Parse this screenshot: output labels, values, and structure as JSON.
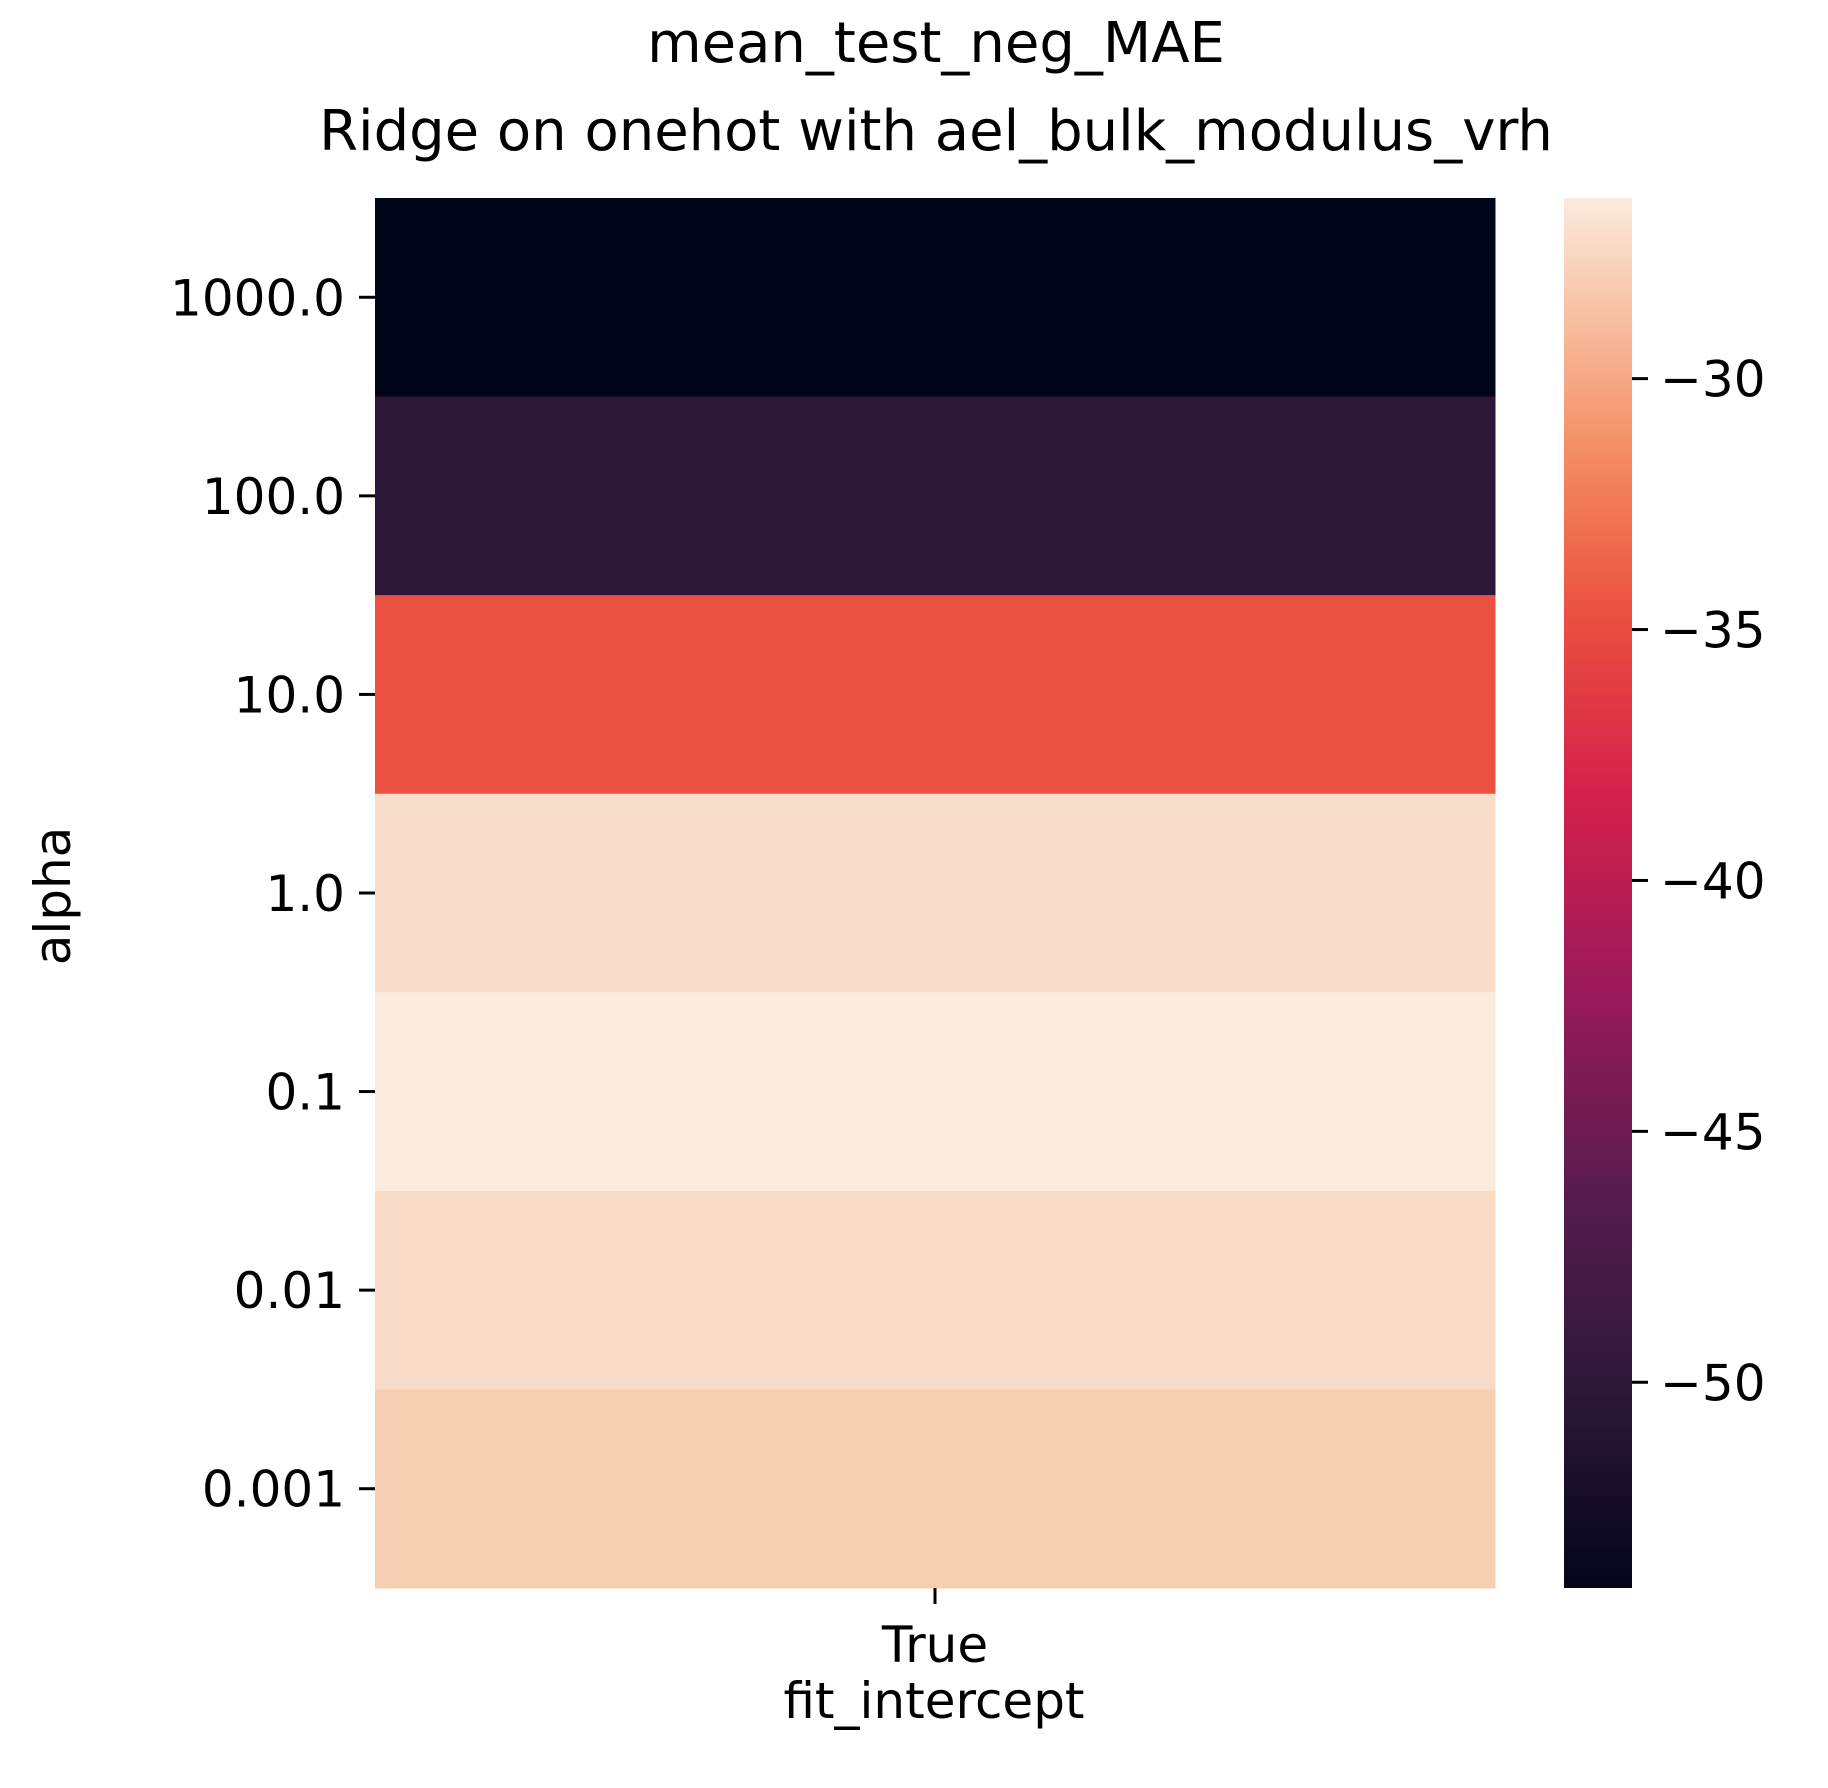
{
  "chart_data": {
    "type": "heatmap",
    "title_lines": [
      "mean_test_neg_MAE",
      "Ridge on onehot with ael_bulk_modulus_vrh"
    ],
    "xlabel": "fit_intercept",
    "ylabel": "alpha",
    "x_categories": [
      "True"
    ],
    "y_categories": [
      "1000.0",
      "100.0",
      "10.0",
      "1.0",
      "0.1",
      "0.01",
      "0.001"
    ],
    "values": [
      [
        -54.1
      ],
      [
        -51.0
      ],
      [
        -34.9
      ],
      [
        -27.2
      ],
      [
        -26.4
      ],
      [
        -27.6
      ],
      [
        -28.4
      ]
    ],
    "colorbar": {
      "min": -54.1,
      "max": -26.4,
      "ticks": [
        -50,
        -45,
        -40,
        -35,
        -30
      ],
      "tick_labels": [
        "−50",
        "−45",
        "−40",
        "−35",
        "−30"
      ],
      "colormap": "rocket"
    },
    "colors": [
      "#03051a",
      "#2c1838",
      "#eb5040",
      "#f8ddcb",
      "#faebdd",
      "#f8dbc6",
      "#f6cfb3"
    ]
  }
}
